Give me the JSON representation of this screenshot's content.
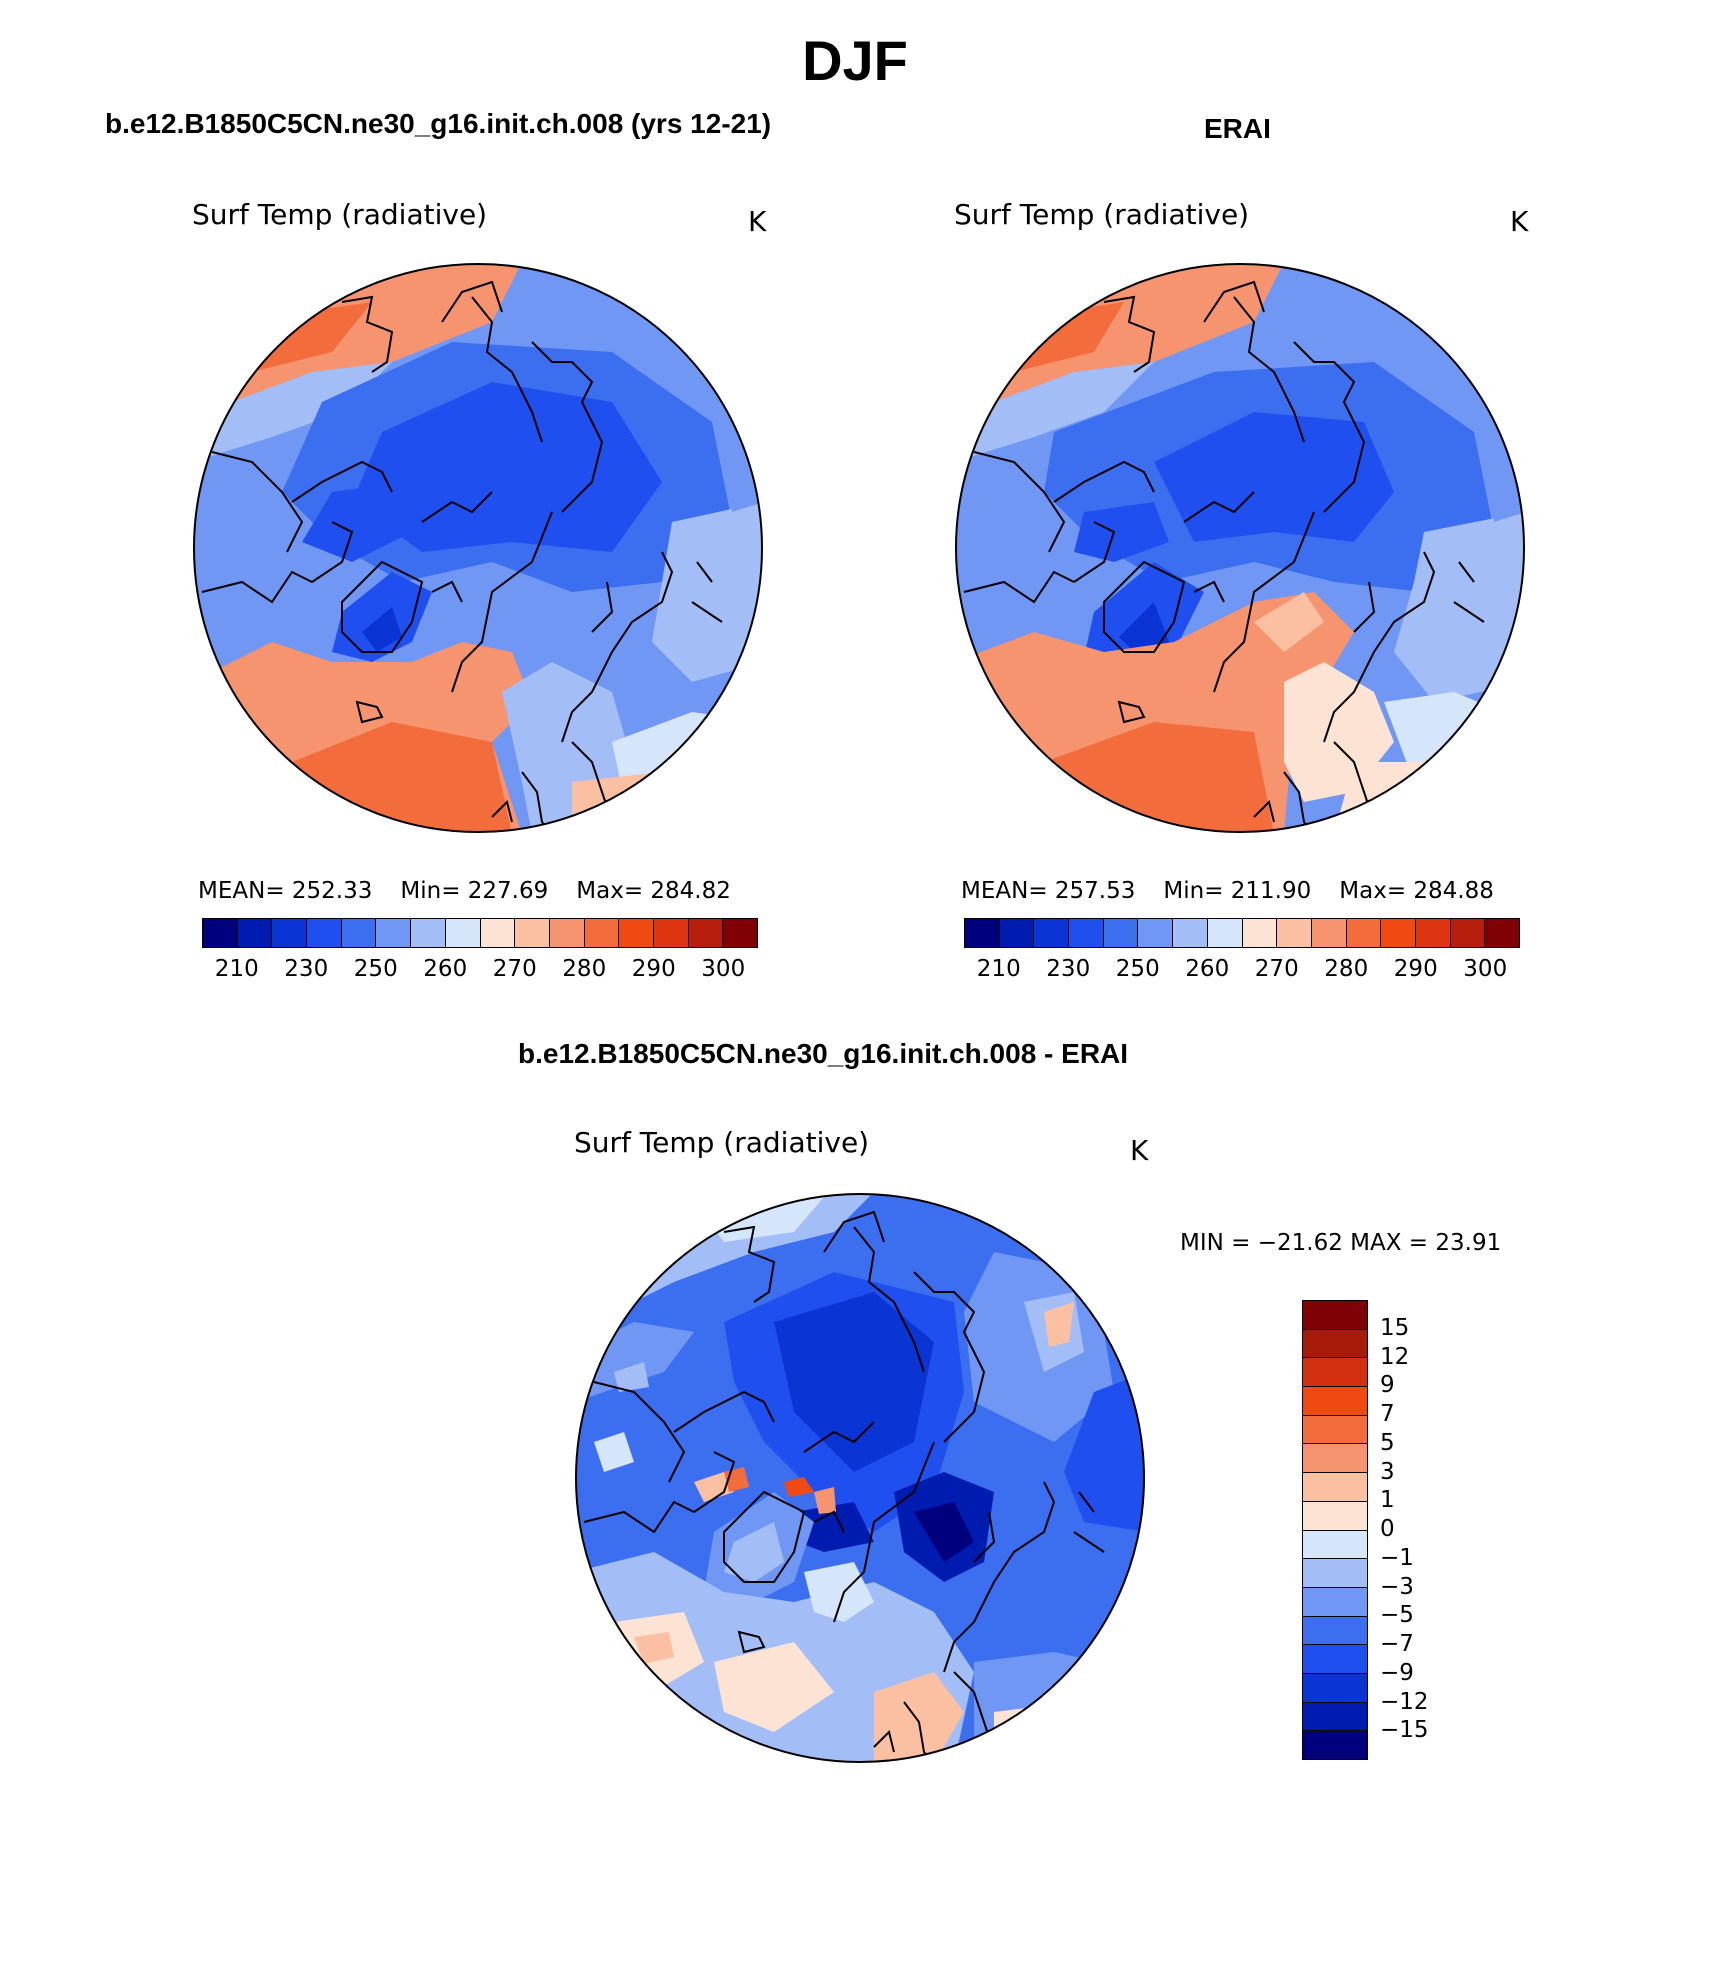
{
  "main_title": "DJF",
  "panels": {
    "model": {
      "subtitle": "b.e12.B1850C5CN.ne30_g16.init.ch.008 (yrs 12-21)",
      "variable": "Surf Temp (radiative)",
      "units": "K",
      "mean": "MEAN= 252.33",
      "min": "Min= 227.69",
      "max": "Max= 284.82"
    },
    "obs": {
      "subtitle": "ERAI",
      "variable": "Surf Temp (radiative)",
      "units": "K",
      "mean": "MEAN= 257.53",
      "min": "Min= 211.90",
      "max": "Max= 284.88"
    },
    "diff": {
      "subtitle": "b.e12.B1850C5CN.ne30_g16.init.ch.008 - ERAI",
      "variable": "Surf Temp (radiative)",
      "units": "K",
      "minmax": "MIN = −21.62  MAX =   23.91"
    }
  },
  "abs_colorbar": {
    "colors": [
      "#00007f",
      "#001bb0",
      "#0a35d4",
      "#1f50ef",
      "#3c6ff0",
      "#7097f4",
      "#a3bef6",
      "#d6e6fa",
      "#fde3d3",
      "#fbbfa2",
      "#f69470",
      "#f36d3c",
      "#f04a12",
      "#dd3510",
      "#b71e0c",
      "#7f0005"
    ],
    "tick_labels": [
      "210",
      "230",
      "250",
      "260",
      "270",
      "280",
      "290",
      "300"
    ]
  },
  "diff_colorbar": {
    "colors_top_to_bottom": [
      "#7f0005",
      "#a81a09",
      "#d23010",
      "#f04a12",
      "#f36d3c",
      "#f69470",
      "#fbbfa2",
      "#fde3d3",
      "#d6e6fa",
      "#a3bef6",
      "#7097f4",
      "#3c6ff0",
      "#1f50ef",
      "#0a35d4",
      "#001bb0",
      "#00007f"
    ],
    "tick_labels": [
      "15",
      "12",
      "9",
      "7",
      "5",
      "3",
      "1",
      "0",
      "−1",
      "−3",
      "−5",
      "−7",
      "−9",
      "−12",
      "−15"
    ]
  }
}
